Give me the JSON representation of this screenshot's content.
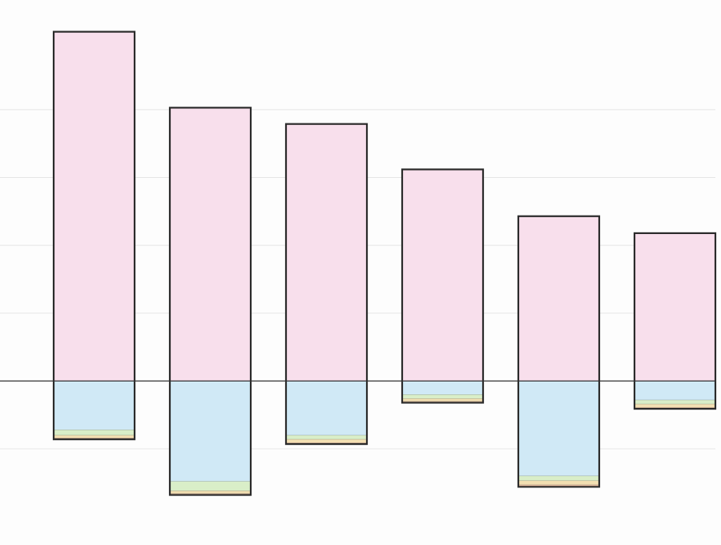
{
  "chart_data": {
    "type": "bar",
    "stacked": true,
    "categories": [
      "",
      "",
      "",
      "",
      "",
      ""
    ],
    "ylim": [
      -2.3,
      5.5
    ],
    "gridlines": [
      -1,
      1,
      2,
      3,
      4
    ],
    "zero_line": true,
    "grid": true,
    "legend": "none",
    "series": [
      {
        "values": [
          5.15,
          4.03,
          3.79,
          3.12,
          2.43,
          2.18
        ],
        "color": "#f8dfec"
      },
      {
        "values": [
          -0.72,
          -1.48,
          -0.8,
          -0.2,
          -1.4,
          -0.28
        ],
        "color": "#d0e9f6"
      },
      {
        "values": [
          -0.08,
          -0.14,
          -0.06,
          -0.06,
          -0.07,
          -0.06
        ],
        "color": "#d9eec8"
      },
      {
        "values": [
          -0.04,
          -0.04,
          -0.05,
          -0.04,
          -0.06,
          -0.05
        ],
        "color": "#f3e0b2"
      },
      {
        "values": [
          -0.02,
          -0.02,
          -0.02,
          -0.02,
          -0.03,
          -0.02
        ],
        "color": "#f2c7a8"
      }
    ],
    "outline_color": "#2b2b2b",
    "grid_color": "#e6e6e6",
    "axis_color": "#333333"
  }
}
